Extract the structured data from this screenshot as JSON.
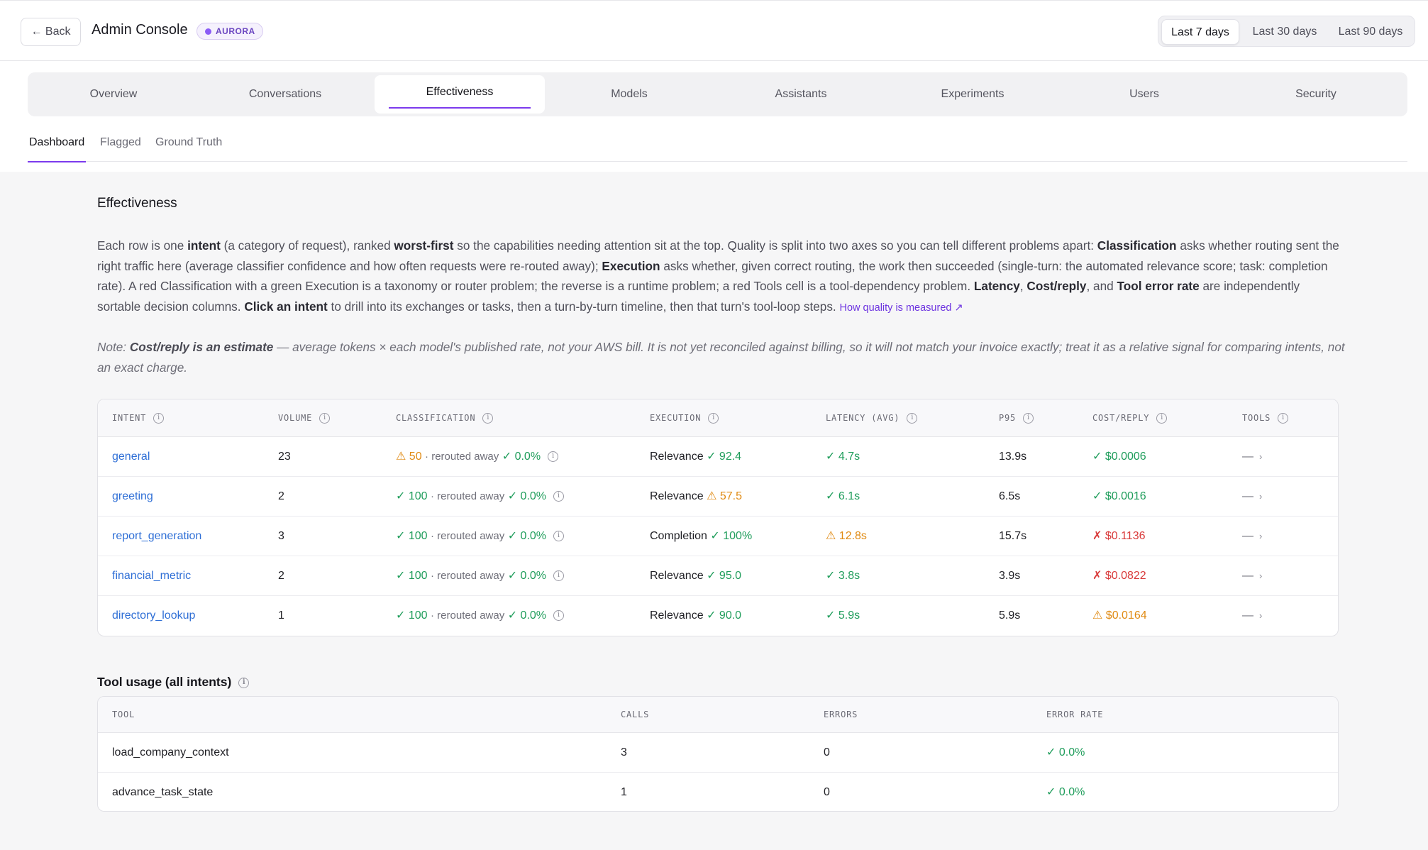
{
  "header": {
    "back_label": "← Back",
    "title": "Admin Console",
    "badge": "AURORA",
    "ranges": [
      "Last 7 days",
      "Last 30 days",
      "Last 90 days"
    ],
    "active_range": "Last 7 days"
  },
  "main_tabs": [
    "Overview",
    "Conversations",
    "Effectiveness",
    "Models",
    "Assistants",
    "Experiments",
    "Users",
    "Security"
  ],
  "active_main_tab": "Effectiveness",
  "sub_tabs": [
    "Dashboard",
    "Flagged",
    "Ground Truth"
  ],
  "active_sub_tab": "Dashboard",
  "section": {
    "title": "Effectiveness",
    "desc": {
      "p1": "Each row is one ",
      "b1": "intent",
      "p2": " (a category of request), ranked ",
      "b2": "worst-first",
      "p3": " so the capabilities needing attention sit at the top. Quality is split into two axes so you can tell different problems apart: ",
      "b3": "Classification",
      "p4": " asks whether routing sent the right traffic here (average classifier confidence and how often requests were re-routed away); ",
      "b4": "Execution",
      "p5": " asks whether, given correct routing, the work then succeeded (single-turn: the automated relevance score; task: completion rate). A red Classification with a green Execution is a taxonomy or router problem; the reverse is a runtime problem; a red Tools cell is a tool-dependency problem. ",
      "b5": "Latency",
      "p6": ", ",
      "b6": "Cost/reply",
      "p7": ", and ",
      "b7": "Tool error rate",
      "p8": " are independently sortable decision columns. ",
      "b8": "Click an intent",
      "p9": " to drill into its exchanges or tasks, then a turn-by-turn timeline, then that turn's tool-loop steps. ",
      "link": "How quality is measured ↗"
    },
    "note": {
      "prefix": "Note: ",
      "bold": "Cost/reply is an estimate",
      "rest": " — average tokens × each model's published rate, not your AWS bill. It is not yet reconciled against billing, so it will not match your invoice exactly; treat it as a relative signal for comparing intents, not an exact charge."
    }
  },
  "intent_table": {
    "headers": [
      "INTENT",
      "VOLUME",
      "CLASSIFICATION",
      "EXECUTION",
      "LATENCY (AVG)",
      "P95",
      "COST/REPLY",
      "TOOLS"
    ],
    "rerouted_label": "· rerouted away",
    "rows": [
      {
        "intent": "general",
        "volume": "23",
        "class_status": "warn",
        "class_icon": "⚠",
        "class_score": "50",
        "reroute": "✓ 0.0%",
        "exec_label": "Relevance",
        "exec_status": "ok",
        "exec_value": "✓ 92.4",
        "latency_status": "ok",
        "latency": "✓ 4.7s",
        "p95": "13.9s",
        "cost_status": "ok",
        "cost": "✓ $0.0006",
        "tools": "—"
      },
      {
        "intent": "greeting",
        "volume": "2",
        "class_status": "ok",
        "class_icon": "✓",
        "class_score": "100",
        "reroute": "✓ 0.0%",
        "exec_label": "Relevance",
        "exec_status": "warn",
        "exec_value": "⚠ 57.5",
        "latency_status": "ok",
        "latency": "✓ 6.1s",
        "p95": "6.5s",
        "cost_status": "ok",
        "cost": "✓ $0.0016",
        "tools": "—"
      },
      {
        "intent": "report_generation",
        "volume": "3",
        "class_status": "ok",
        "class_icon": "✓",
        "class_score": "100",
        "reroute": "✓ 0.0%",
        "exec_label": "Completion",
        "exec_status": "ok",
        "exec_value": "✓ 100%",
        "latency_status": "warn",
        "latency": "⚠ 12.8s",
        "p95": "15.7s",
        "cost_status": "bad",
        "cost": "✗ $0.1136",
        "tools": "—"
      },
      {
        "intent": "financial_metric",
        "volume": "2",
        "class_status": "ok",
        "class_icon": "✓",
        "class_score": "100",
        "reroute": "✓ 0.0%",
        "exec_label": "Relevance",
        "exec_status": "ok",
        "exec_value": "✓ 95.0",
        "latency_status": "ok",
        "latency": "✓ 3.8s",
        "p95": "3.9s",
        "cost_status": "bad",
        "cost": "✗ $0.0822",
        "tools": "—"
      },
      {
        "intent": "directory_lookup",
        "volume": "1",
        "class_status": "ok",
        "class_icon": "✓",
        "class_score": "100",
        "reroute": "✓ 0.0%",
        "exec_label": "Relevance",
        "exec_status": "ok",
        "exec_value": "✓ 90.0",
        "latency_status": "ok",
        "latency": "✓ 5.9s",
        "p95": "5.9s",
        "cost_status": "warn",
        "cost": "⚠ $0.0164",
        "tools": "—"
      }
    ]
  },
  "tool_usage": {
    "title": "Tool usage (all intents)",
    "headers": [
      "TOOL",
      "CALLS",
      "ERRORS",
      "ERROR RATE"
    ],
    "rows": [
      {
        "tool": "load_company_context",
        "calls": "3",
        "errors": "0",
        "error_rate": "✓ 0.0%"
      },
      {
        "tool": "advance_task_state",
        "calls": "1",
        "errors": "0",
        "error_rate": "✓ 0.0%"
      }
    ]
  },
  "colors": {
    "accent": "#7c3aed",
    "link": "#2f6fd6",
    "ok": "#1f9d5b",
    "warn": "#e08a12",
    "bad": "#d93a3a"
  }
}
